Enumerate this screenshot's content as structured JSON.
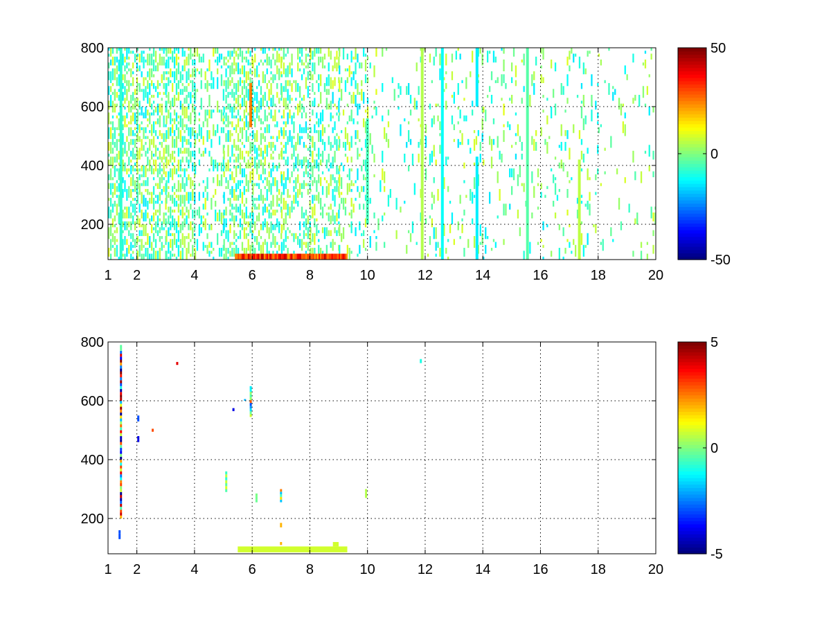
{
  "chart_data": [
    {
      "type": "heatmap",
      "x": [
        1,
        20
      ],
      "y": [
        80,
        800
      ],
      "xticks": [
        1,
        2,
        4,
        6,
        8,
        10,
        12,
        14,
        16,
        18,
        20
      ],
      "yticks": [
        200,
        400,
        600,
        800
      ],
      "xlim": [
        1,
        20
      ],
      "ylim": [
        80,
        800
      ],
      "grid": true,
      "colormap": "jet",
      "clim": [
        -50,
        50
      ],
      "colorbar_ticks": [
        50,
        0,
        -50
      ],
      "colorbar_tick_labels": [
        "50",
        "0",
        "-50"
      ],
      "texture": {
        "density": [
          {
            "x": [
              1,
              2
            ],
            "d": 0.55
          },
          {
            "x": [
              2,
              3
            ],
            "d": 0.45
          },
          {
            "x": [
              3,
              4
            ],
            "d": 0.55
          },
          {
            "x": [
              4,
              5
            ],
            "d": 0.18
          },
          {
            "x": [
              5,
              6
            ],
            "d": 0.45
          },
          {
            "x": [
              6,
              7
            ],
            "d": 0.35
          },
          {
            "x": [
              7,
              8
            ],
            "d": 0.25
          },
          {
            "x": [
              8,
              9
            ],
            "d": 0.3
          },
          {
            "x": [
              9,
              10
            ],
            "d": 0.18
          },
          {
            "x": [
              10,
              12
            ],
            "d": 0.04
          },
          {
            "x": [
              12,
              14
            ],
            "d": 0.06
          },
          {
            "x": [
              14,
              16
            ],
            "d": 0.05
          },
          {
            "x": [
              16,
              18
            ],
            "d": 0.07
          },
          {
            "x": [
              18,
              20
            ],
            "d": 0.03
          }
        ],
        "value_range": [
          -15,
          10
        ],
        "vertical_streaks": [
          {
            "x": 1.4,
            "y": [
              80,
              800
            ],
            "v": -8
          },
          {
            "x": 5.9,
            "y": [
              530,
              680
            ],
            "v": 25
          },
          {
            "x": 9.95,
            "y": [
              200,
              560
            ],
            "v": -6
          },
          {
            "x": 11.85,
            "y": [
              80,
              800
            ],
            "v": 5
          },
          {
            "x": 12.55,
            "y": [
              80,
              800
            ],
            "v": -12
          },
          {
            "x": 13.75,
            "y": [
              80,
              430
            ],
            "v": -14
          },
          {
            "x": 13.75,
            "y": [
              600,
              800
            ],
            "v": -14
          },
          {
            "x": 15.5,
            "y": [
              80,
              800
            ],
            "v": -4
          },
          {
            "x": 17.3,
            "y": [
              80,
              420
            ],
            "v": 6
          }
        ],
        "bottom_band": {
          "x": [
            5.4,
            9.3
          ],
          "y": [
            80,
            100
          ],
          "v": [
            20,
            45
          ]
        }
      }
    },
    {
      "type": "heatmap",
      "x": [
        1,
        20
      ],
      "y": [
        80,
        800
      ],
      "xticks": [
        1,
        2,
        4,
        6,
        8,
        10,
        12,
        14,
        16,
        18,
        20
      ],
      "yticks": [
        200,
        400,
        600,
        800
      ],
      "xlim": [
        1,
        20
      ],
      "ylim": [
        80,
        800
      ],
      "grid": true,
      "colormap": "jet",
      "clim": [
        -5,
        5
      ],
      "colorbar_ticks": [
        5,
        0,
        -5
      ],
      "colorbar_tick_labels": [
        "5",
        "0",
        "-5"
      ],
      "features": [
        {
          "x": 1.45,
          "y": [
            200,
            790
          ],
          "v": [
            -5,
            5
          ],
          "kind": "column"
        },
        {
          "x": 1.4,
          "y": [
            130,
            160
          ],
          "v": [
            -3
          ],
          "kind": "column"
        },
        {
          "x": 2.05,
          "y": [
            460,
            480
          ],
          "v": [
            -4
          ],
          "kind": "point"
        },
        {
          "x": 2.05,
          "y": [
            530,
            550
          ],
          "v": [
            -3
          ],
          "kind": "point"
        },
        {
          "x": 2.55,
          "y": [
            495,
            505
          ],
          "v": [
            3
          ],
          "kind": "point"
        },
        {
          "x": 3.4,
          "y": [
            722,
            732
          ],
          "v": [
            4
          ],
          "kind": "point"
        },
        {
          "x": 5.1,
          "y": [
            290,
            360
          ],
          "v": [
            1,
            -1
          ],
          "kind": "column"
        },
        {
          "x": 5.35,
          "y": [
            565,
            575
          ],
          "v": [
            -4
          ],
          "kind": "point"
        },
        {
          "x": 5.75,
          "y": [
            600,
            606
          ],
          "v": [
            -2
          ],
          "kind": "point"
        },
        {
          "x": 5.95,
          "y": [
            545,
            650
          ],
          "v": [
            -3,
            3
          ],
          "kind": "column"
        },
        {
          "x": 6.15,
          "y": [
            255,
            285
          ],
          "v": [
            -4,
            1
          ],
          "kind": "column"
        },
        {
          "x": 7.0,
          "y": [
            255,
            300
          ],
          "v": [
            -2,
            4
          ],
          "kind": "column"
        },
        {
          "x": 7.0,
          "y": [
            170,
            185
          ],
          "v": [
            2
          ],
          "kind": "point"
        },
        {
          "x": 7.0,
          "y": [
            110,
            120
          ],
          "v": [
            2
          ],
          "kind": "point"
        },
        {
          "x": 9.95,
          "y": [
            270,
            300
          ],
          "v": [
            0.5
          ],
          "kind": "point"
        },
        {
          "x": 11.85,
          "y": [
            728,
            742
          ],
          "v": [
            -1
          ],
          "kind": "point"
        },
        {
          "x": [
            5.5,
            9.3
          ],
          "y": [
            85,
            105
          ],
          "v": [
            0.8
          ],
          "kind": "band"
        },
        {
          "x": [
            8.8,
            9.0
          ],
          "y": [
            105,
            120
          ],
          "v": [
            0.8
          ],
          "kind": "band"
        }
      ]
    }
  ]
}
